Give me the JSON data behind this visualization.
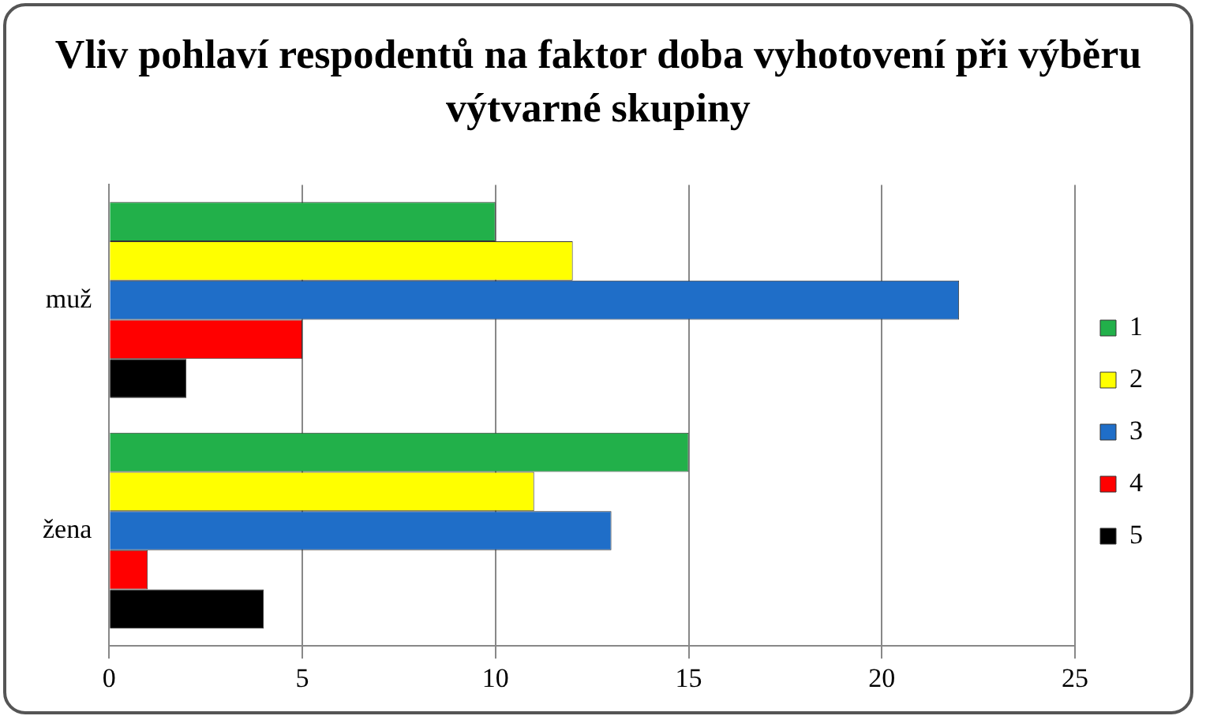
{
  "chart_data": {
    "type": "bar",
    "orientation": "horizontal",
    "title": "Vliv pohlaví respodentů na faktor doba vyhotovení při výběru výtvarné skupiny",
    "categories": [
      "muž",
      "žena"
    ],
    "series": [
      {
        "name": "1",
        "color": "#22b04a",
        "values": [
          10,
          15
        ]
      },
      {
        "name": "2",
        "color": "#ffff00",
        "values": [
          12,
          11
        ]
      },
      {
        "name": "3",
        "color": "#1f6ec8",
        "values": [
          22,
          13
        ]
      },
      {
        "name": "4",
        "color": "#ff0000",
        "values": [
          5,
          1
        ]
      },
      {
        "name": "5",
        "color": "#000000",
        "values": [
          2,
          4
        ]
      }
    ],
    "xlim": [
      0,
      25
    ],
    "xticks": [
      0,
      5,
      10,
      15,
      20,
      25
    ],
    "grid": "x",
    "legend": "right"
  }
}
